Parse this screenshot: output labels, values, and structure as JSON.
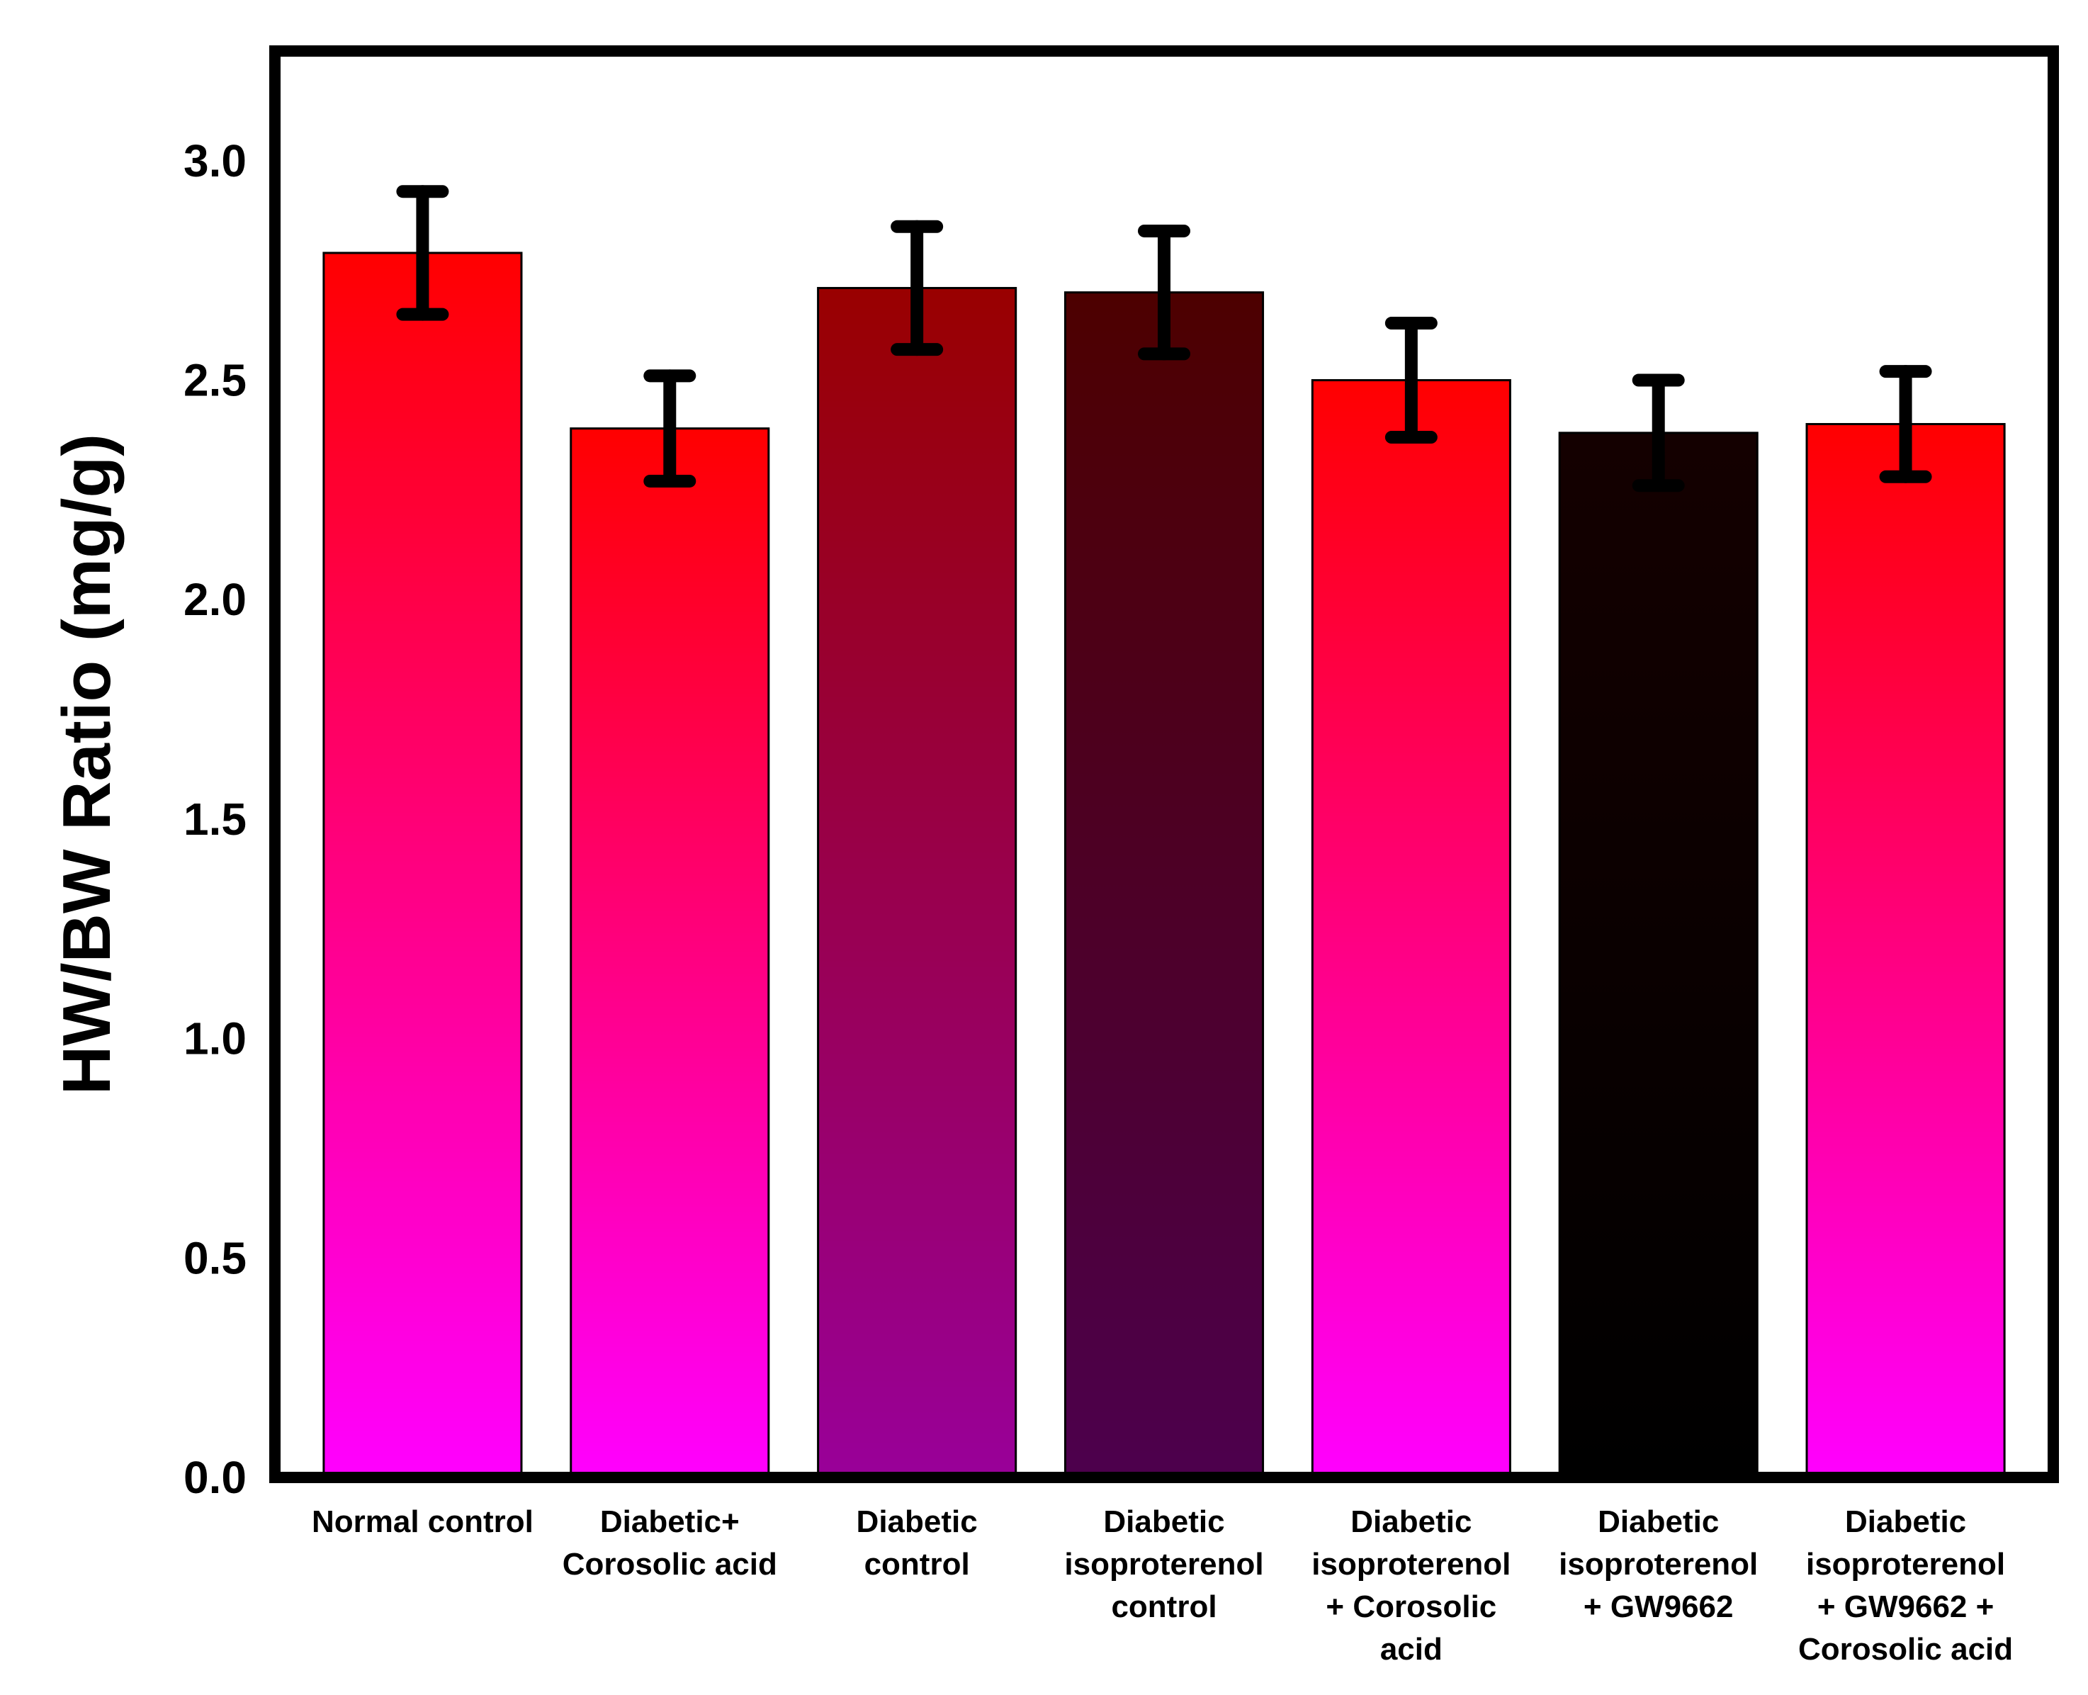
{
  "chart_data": {
    "type": "bar",
    "title": "",
    "xlabel": "",
    "ylabel": "HW/BW Ratio (mg/g)",
    "ylim": [
      0,
      3.25
    ],
    "yticks": [
      "0.0",
      "0.5",
      "1.0",
      "1.5",
      "2.0",
      "2.5",
      "3.0"
    ],
    "ytick_values": [
      0,
      0.5,
      1.0,
      1.5,
      2.0,
      2.5,
      3.0
    ],
    "grid": false,
    "categories": [
      [
        "Normal control"
      ],
      [
        "Diabetic+",
        "Corosolic acid"
      ],
      [
        "Diabetic",
        "control"
      ],
      [
        "Diabetic",
        "isoproterenol",
        "control"
      ],
      [
        "Diabetic",
        "isoproterenol",
        "+ Corosolic",
        "acid"
      ],
      [
        "Diabetic",
        "isoproterenol",
        "+ GW9662"
      ],
      [
        "Diabetic",
        "isoproterenol",
        "+ GW9662 +",
        "Corosolic acid"
      ]
    ],
    "values": [
      2.79,
      2.39,
      2.71,
      2.7,
      2.5,
      2.38,
      2.4
    ],
    "errors": [
      0.14,
      0.12,
      0.14,
      0.14,
      0.13,
      0.12,
      0.12
    ],
    "bar_colors": [
      {
        "top": "#ff0000",
        "bottom": "#ff00ff"
      },
      {
        "top": "#ff0000",
        "bottom": "#ff00ff"
      },
      {
        "top": "#990000",
        "bottom": "#990099"
      },
      {
        "top": "#4d0000",
        "bottom": "#4d004d"
      },
      {
        "top": "#ff0000",
        "bottom": "#ff00ff"
      },
      {
        "top": "#140000",
        "bottom": "#000000"
      },
      {
        "top": "#ff0000",
        "bottom": "#ff00ff"
      }
    ]
  }
}
